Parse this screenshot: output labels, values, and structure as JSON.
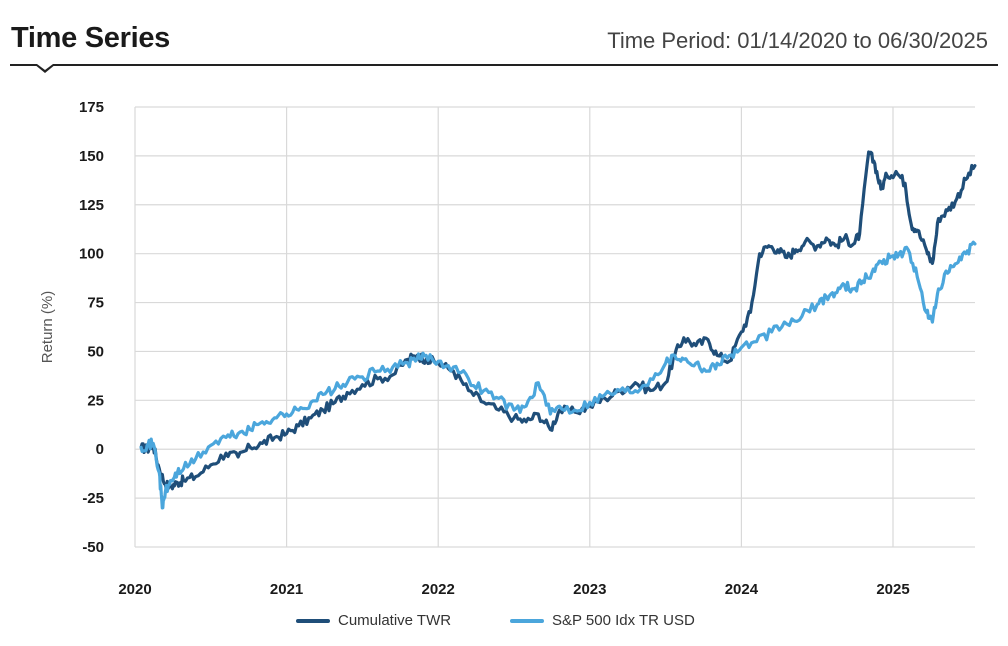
{
  "header": {
    "title": "Time Series",
    "period": "Time Period: 01/14/2020 to 06/30/2025"
  },
  "colors": {
    "series1": "#1f4e79",
    "series2": "#4ba6dc",
    "grid": "#d9d9d9"
  },
  "chart_data": {
    "type": "line",
    "title": "Time Series",
    "ylabel": "Return (%)",
    "xlabel": "",
    "xlim": [
      2020.0,
      2025.54
    ],
    "ylim": [
      -50,
      175
    ],
    "yticks": [
      175,
      150,
      125,
      100,
      75,
      50,
      25,
      0,
      -25,
      -50
    ],
    "xticks": [
      "2020",
      "2021",
      "2022",
      "2023",
      "2024",
      "2025"
    ],
    "grid": true,
    "legend_position": "bottom",
    "series": [
      {
        "name": "Cumulative TWR",
        "color": "#1f4e79",
        "x": [
          2020.04,
          2020.08,
          2020.12,
          2020.16,
          2020.2,
          2020.24,
          2020.28,
          2020.32,
          2020.4,
          2020.5,
          2020.6,
          2020.68,
          2020.76,
          2020.84,
          2020.92,
          2021.0,
          2021.08,
          2021.16,
          2021.24,
          2021.32,
          2021.4,
          2021.5,
          2021.6,
          2021.7,
          2021.8,
          2021.86,
          2021.92,
          2022.0,
          2022.1,
          2022.2,
          2022.3,
          2022.4,
          2022.5,
          2022.58,
          2022.66,
          2022.74,
          2022.8,
          2022.9,
          2023.0,
          2023.1,
          2023.2,
          2023.3,
          2023.4,
          2023.5,
          2023.56,
          2023.62,
          2023.7,
          2023.78,
          2023.84,
          2023.92,
          2024.0,
          2024.06,
          2024.12,
          2024.18,
          2024.24,
          2024.3,
          2024.36,
          2024.42,
          2024.5,
          2024.56,
          2024.62,
          2024.68,
          2024.74,
          2024.78,
          2024.84,
          2024.88,
          2024.92,
          2024.96,
          2025.02,
          2025.08,
          2025.12,
          2025.16,
          2025.22,
          2025.26,
          2025.3,
          2025.36,
          2025.42,
          2025.48,
          2025.54
        ],
        "values": [
          1,
          0,
          2,
          -10,
          -18,
          -19,
          -17,
          -16,
          -14,
          -8,
          -2,
          -4,
          1,
          3,
          6,
          8,
          12,
          16,
          20,
          24,
          29,
          33,
          36,
          38,
          46,
          48,
          46,
          44,
          40,
          30,
          24,
          20,
          16,
          14,
          18,
          10,
          20,
          19,
          22,
          26,
          30,
          34,
          30,
          34,
          48,
          57,
          53,
          56,
          48,
          45,
          60,
          70,
          100,
          104,
          102,
          98,
          102,
          106,
          104,
          108,
          104,
          108,
          105,
          110,
          152,
          146,
          133,
          140,
          142,
          136,
          115,
          112,
          102,
          95,
          118,
          122,
          128,
          138,
          145
        ]
      },
      {
        "name": "S&P 500 Idx TR USD",
        "color": "#4ba6dc",
        "x": [
          2020.04,
          2020.08,
          2020.12,
          2020.16,
          2020.18,
          2020.2,
          2020.24,
          2020.28,
          2020.32,
          2020.4,
          2020.5,
          2020.6,
          2020.68,
          2020.76,
          2020.84,
          2020.92,
          2021.0,
          2021.08,
          2021.16,
          2021.24,
          2021.32,
          2021.4,
          2021.5,
          2021.6,
          2021.7,
          2021.8,
          2021.86,
          2021.92,
          2022.0,
          2022.1,
          2022.2,
          2022.3,
          2022.4,
          2022.5,
          2022.58,
          2022.66,
          2022.74,
          2022.8,
          2022.9,
          2023.0,
          2023.1,
          2023.2,
          2023.3,
          2023.4,
          2023.5,
          2023.56,
          2023.62,
          2023.7,
          2023.78,
          2023.84,
          2023.92,
          2024.0,
          2024.1,
          2024.2,
          2024.3,
          2024.4,
          2024.5,
          2024.56,
          2024.62,
          2024.68,
          2024.74,
          2024.8,
          2024.86,
          2024.92,
          2024.98,
          2025.04,
          2025.1,
          2025.16,
          2025.22,
          2025.26,
          2025.3,
          2025.36,
          2025.42,
          2025.48,
          2025.54
        ],
        "values": [
          1,
          2,
          3,
          -12,
          -30,
          -22,
          -16,
          -12,
          -10,
          -5,
          2,
          6,
          8,
          10,
          14,
          16,
          18,
          20,
          24,
          28,
          31,
          34,
          37,
          40,
          42,
          44,
          46,
          48,
          45,
          42,
          36,
          30,
          26,
          20,
          22,
          34,
          18,
          22,
          20,
          24,
          28,
          30,
          30,
          36,
          44,
          48,
          46,
          44,
          40,
          44,
          48,
          52,
          55,
          60,
          64,
          68,
          74,
          78,
          80,
          84,
          82,
          86,
          90,
          96,
          98,
          100,
          102,
          88,
          70,
          65,
          82,
          90,
          95,
          100,
          105
        ]
      }
    ]
  }
}
